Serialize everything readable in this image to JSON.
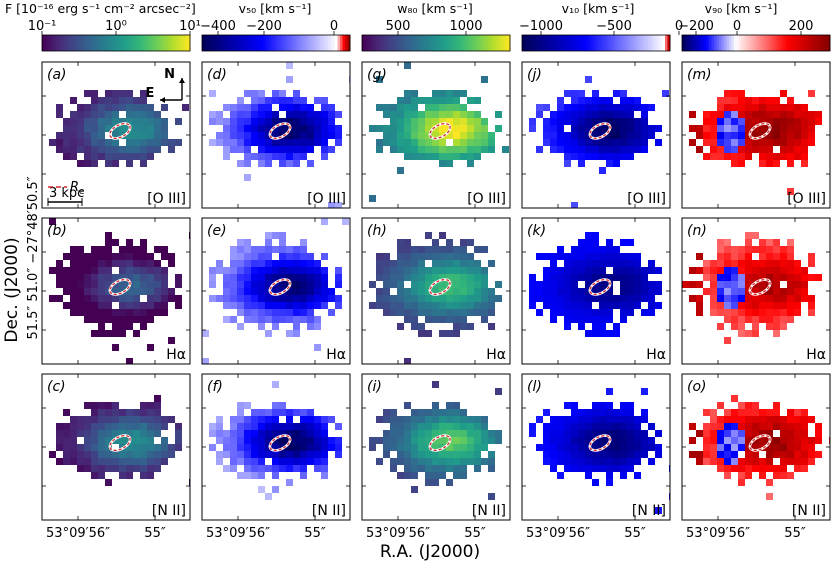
{
  "chart_data": {
    "type": "heatmap",
    "title": "",
    "layout_rows": [
      "[O III]",
      "Hα",
      "[N II]"
    ],
    "x_axis": {
      "label": "R.A. (J2000)",
      "tick_labels": [
        "53°09′56″",
        "55″"
      ]
    },
    "y_axis": {
      "label_main": "Dec. (J2000)",
      "label_ticks": "51.5″ 51.0″ −27°48′50.5″"
    },
    "colorbars": [
      {
        "id": "F",
        "label": "F [10⁻¹⁶ erg s⁻¹ cm⁻² arcsec⁻²]",
        "scale": "log",
        "range": [
          0.1,
          10
        ],
        "ticks": [
          "10⁻¹",
          "10⁰",
          "10¹"
        ],
        "colormap": "viridis"
      },
      {
        "id": "v50",
        "label": "v₅₀ [km s⁻¹]",
        "scale": "linear",
        "range": [
          -500,
          50
        ],
        "ticks": [
          "−400",
          "−200",
          "0"
        ],
        "colormap": "seismic"
      },
      {
        "id": "w80",
        "label": "w₈₀ [km s⁻¹]",
        "scale": "linear",
        "range": [
          250,
          1250
        ],
        "ticks": [
          "500",
          "1000"
        ],
        "colormap": "viridis"
      },
      {
        "id": "v10",
        "label": "v₁₀ [km s⁻¹]",
        "scale": "linear",
        "range": [
          -1300,
          50
        ],
        "ticks": [
          "−1000",
          "−500",
          "0"
        ],
        "colormap": "seismic"
      },
      {
        "id": "v90",
        "label": "v₉₀ [km s⁻¹]",
        "scale": "linear",
        "range": [
          -200,
          350
        ],
        "ticks": [
          "−200",
          "0",
          "200"
        ],
        "colormap": "seismic"
      }
    ],
    "panels": [
      {
        "letter": "(a)",
        "quantity": "F",
        "line": "[O III]",
        "peak": 0.95,
        "edge": 0.12
      },
      {
        "letter": "(b)",
        "quantity": "F",
        "line": "Hα",
        "peak": 0.45,
        "edge": 0.05
      },
      {
        "letter": "(c)",
        "quantity": "F",
        "line": "[N II]",
        "peak": 0.95,
        "edge": 0.1
      },
      {
        "letter": "(d)",
        "quantity": "v50",
        "line": "[O III]",
        "peak": -480,
        "edge": -90
      },
      {
        "letter": "(e)",
        "quantity": "v50",
        "line": "Hα",
        "peak": -460,
        "edge": -100
      },
      {
        "letter": "(f)",
        "quantity": "v50",
        "line": "[N II]",
        "peak": -480,
        "edge": -80
      },
      {
        "letter": "(g)",
        "quantity": "w80",
        "line": "[O III]",
        "peak": 1250,
        "edge": 600
      },
      {
        "letter": "(h)",
        "quantity": "w80",
        "line": "Hα",
        "peak": 950,
        "edge": 420
      },
      {
        "letter": "(i)",
        "quantity": "w80",
        "line": "[N II]",
        "peak": 1000,
        "edge": 430
      },
      {
        "letter": "(j)",
        "quantity": "v10",
        "line": "[O III]",
        "peak": -1250,
        "edge": -500
      },
      {
        "letter": "(k)",
        "quantity": "v10",
        "line": "Hα",
        "peak": -1150,
        "edge": -700
      },
      {
        "letter": "(l)",
        "quantity": "v10",
        "line": "[N II]",
        "peak": -1200,
        "edge": -650
      },
      {
        "letter": "(m)",
        "quantity": "v90",
        "line": "[O III]",
        "peak": 330,
        "edge": 150
      },
      {
        "letter": "(n)",
        "quantity": "v90",
        "line": "Hα",
        "peak": 300,
        "edge": 120
      },
      {
        "letter": "(o)",
        "quantity": "v90",
        "line": "[N II]",
        "peak": 320,
        "edge": 130
      }
    ],
    "annotations": {
      "scale_bar": "3 kpc",
      "re_legend": "R",
      "re_subscript": "e",
      "compass_north": "N",
      "compass_east": "E"
    },
    "colors": {
      "ellipse": "#ffffff",
      "ellipse_dash": "#d62728",
      "legend_red": "#d62728"
    }
  }
}
